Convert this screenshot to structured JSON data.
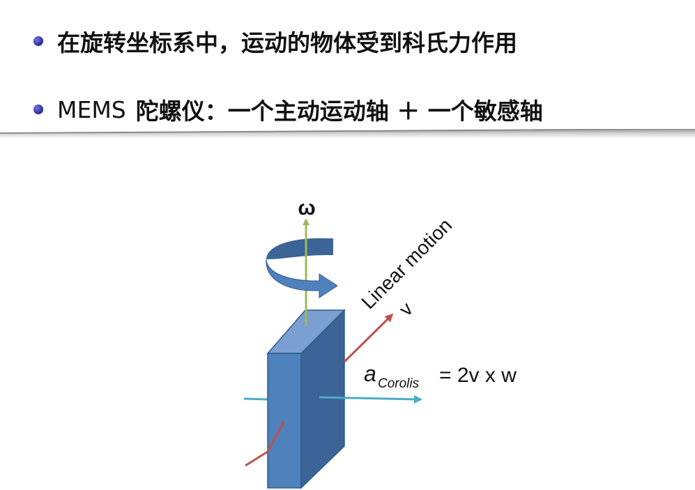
{
  "bullets": [
    {
      "text": "在旋转坐标系中，运动的物体受到科氏力作用"
    },
    {
      "lead": "MEMS",
      "rest": "陀螺仪：一个主动运动轴 ＋ 一个敏感轴"
    }
  ],
  "diagram": {
    "omega_label": "ω",
    "linear_motion_label": "Linear motion",
    "velocity_label": "v",
    "coriolis_symbol": "a",
    "coriolis_subscript": "Corolis",
    "coriolis_equation": "= 2v x w",
    "colors": {
      "block_front": "#4f81bd",
      "block_side": "#3c6496",
      "block_top": "#7b9fd0",
      "omega_axis": "#9bbb59",
      "velocity_axis": "#c0504d",
      "coriolis_axis": "#4bacc6",
      "rotation_arrow": "#4f81bd"
    }
  }
}
